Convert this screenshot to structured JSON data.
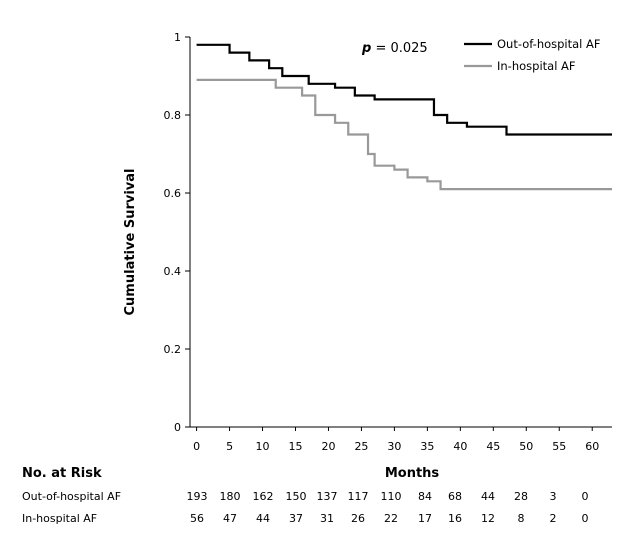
{
  "chart_data": {
    "type": "line",
    "step": true,
    "ylabel": "Cumulative Survival",
    "xlabel": "Months",
    "ylim": [
      0,
      1
    ],
    "yticks": [
      "0",
      "0.2",
      "0.4",
      "0.6",
      "0.8",
      "1"
    ],
    "ytick_values": [
      0,
      0.2,
      0.4,
      0.6,
      0.8,
      1
    ],
    "xlim": [
      -1,
      63
    ],
    "xticks": [
      "0",
      "5",
      "10",
      "15",
      "20",
      "25",
      "30",
      "35",
      "40",
      "45",
      "50",
      "55",
      "60"
    ],
    "xtick_values": [
      0,
      5,
      10,
      15,
      20,
      25,
      30,
      35,
      40,
      45,
      50,
      55,
      60
    ],
    "grid": false,
    "annotation": {
      "prefix": "p",
      "text": " = 0.025"
    },
    "legend_position": "top-right",
    "series": [
      {
        "name": "Out-of-hospital AF",
        "color": "#000000",
        "x": [
          0,
          5,
          8,
          11,
          13,
          17,
          21,
          24,
          27,
          36,
          38,
          41,
          44,
          47,
          63
        ],
        "y": [
          0.98,
          0.96,
          0.94,
          0.92,
          0.9,
          0.88,
          0.87,
          0.85,
          0.84,
          0.8,
          0.78,
          0.77,
          0.77,
          0.75,
          0.75
        ]
      },
      {
        "name": "In-hospital AF",
        "color": "#999999",
        "x": [
          0,
          10,
          12,
          16,
          18,
          21,
          23,
          26,
          27,
          30,
          32,
          35,
          37,
          63
        ],
        "y": [
          0.89,
          0.89,
          0.87,
          0.85,
          0.8,
          0.78,
          0.75,
          0.7,
          0.67,
          0.66,
          0.64,
          0.63,
          0.61,
          0.61
        ]
      }
    ],
    "risk_table": {
      "title": "No. at Risk",
      "rows": [
        {
          "label": "Out-of-hospital AF",
          "values": [
            "193",
            "180",
            "162",
            "150",
            "137",
            "117",
            "110",
            "84",
            "68",
            "44",
            "28",
            "3",
            "0"
          ]
        },
        {
          "label": "In-hospital AF",
          "values": [
            "56",
            "47",
            "44",
            "37",
            "31",
            "26",
            "22",
            "17",
            "16",
            "12",
            "8",
            "2",
            "0"
          ]
        }
      ]
    }
  }
}
